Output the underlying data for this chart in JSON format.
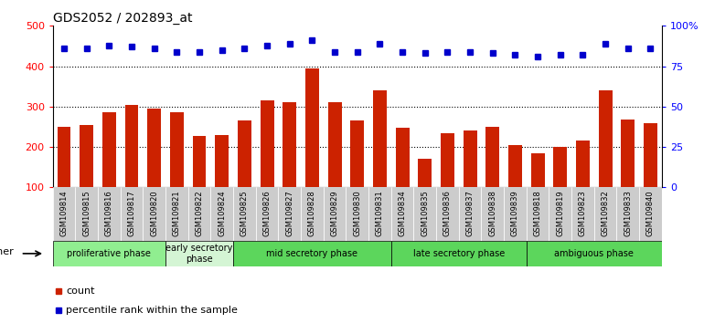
{
  "title": "GDS2052 / 202893_at",
  "samples": [
    "GSM109814",
    "GSM109815",
    "GSM109816",
    "GSM109817",
    "GSM109820",
    "GSM109821",
    "GSM109822",
    "GSM109824",
    "GSM109825",
    "GSM109826",
    "GSM109827",
    "GSM109828",
    "GSM109829",
    "GSM109830",
    "GSM109831",
    "GSM109834",
    "GSM109835",
    "GSM109836",
    "GSM109837",
    "GSM109838",
    "GSM109839",
    "GSM109818",
    "GSM109819",
    "GSM109823",
    "GSM109832",
    "GSM109833",
    "GSM109840"
  ],
  "counts": [
    250,
    255,
    285,
    305,
    295,
    285,
    228,
    230,
    265,
    315,
    310,
    395,
    310,
    265,
    340,
    248,
    170,
    235,
    240,
    250,
    205,
    185,
    200,
    215,
    340,
    268,
    258
  ],
  "percentile_ranks": [
    86,
    86,
    88,
    87,
    86,
    84,
    84,
    85,
    86,
    88,
    89,
    91,
    84,
    84,
    89,
    84,
    83,
    84,
    84,
    83,
    82,
    81,
    82,
    82,
    89,
    86,
    86
  ],
  "phases": [
    {
      "label": "proliferative phase",
      "start": 0,
      "end": 5,
      "color": "#90EE90"
    },
    {
      "label": "early secretory\nphase",
      "start": 5,
      "end": 8,
      "color": "#d4f5d4"
    },
    {
      "label": "mid secretory phase",
      "start": 8,
      "end": 15,
      "color": "#5cd65c"
    },
    {
      "label": "late secretory phase",
      "start": 15,
      "end": 21,
      "color": "#5cd65c"
    },
    {
      "label": "ambiguous phase",
      "start": 21,
      "end": 27,
      "color": "#5cd65c"
    }
  ],
  "bar_color": "#cc2200",
  "dot_color": "#0000cc",
  "ylim_left": [
    100,
    500
  ],
  "ylim_right": [
    0,
    100
  ],
  "yticks_left": [
    100,
    200,
    300,
    400,
    500
  ],
  "yticks_right": [
    0,
    25,
    50,
    75,
    100
  ],
  "ytick_labels_right": [
    "0",
    "25",
    "50",
    "75",
    "100%"
  ],
  "grid_values": [
    200,
    300,
    400
  ],
  "bar_width": 0.6
}
